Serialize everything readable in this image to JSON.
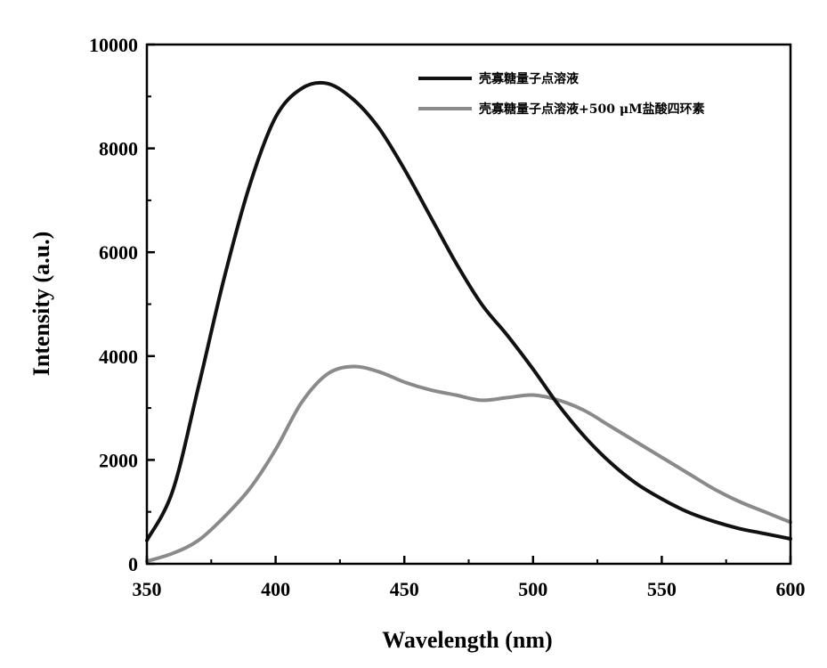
{
  "chart_data": {
    "type": "line",
    "xlabel": "Wavelength (nm)",
    "ylabel": "Intensity (a.u.)",
    "xlim": [
      350,
      600
    ],
    "ylim": [
      0,
      10000
    ],
    "xticks": [
      350,
      400,
      450,
      500,
      550,
      600
    ],
    "yticks": [
      0,
      2000,
      4000,
      6000,
      8000,
      10000
    ],
    "grid": false,
    "legend_position": "top-right",
    "series": [
      {
        "name": "壳寡糖量子点溶液",
        "color": "#111111",
        "x": [
          350,
          360,
          370,
          380,
          390,
          400,
          410,
          420,
          430,
          440,
          450,
          460,
          470,
          480,
          490,
          500,
          510,
          520,
          530,
          540,
          550,
          560,
          570,
          580,
          590,
          600
        ],
        "y": [
          450,
          1400,
          3400,
          5500,
          7300,
          8600,
          9150,
          9250,
          8950,
          8400,
          7600,
          6700,
          5800,
          5000,
          4400,
          3750,
          3050,
          2450,
          1950,
          1550,
          1250,
          1000,
          820,
          680,
          580,
          480
        ]
      },
      {
        "name": "壳寡糖量子点溶液+500 μM盐酸四环素",
        "color": "#8a8a8a",
        "x": [
          350,
          360,
          370,
          380,
          390,
          400,
          410,
          420,
          430,
          440,
          450,
          460,
          470,
          480,
          490,
          500,
          510,
          520,
          530,
          540,
          550,
          560,
          570,
          580,
          590,
          600
        ],
        "y": [
          50,
          200,
          450,
          900,
          1450,
          2200,
          3100,
          3650,
          3800,
          3700,
          3500,
          3350,
          3250,
          3150,
          3200,
          3250,
          3150,
          2950,
          2650,
          2350,
          2050,
          1750,
          1450,
          1200,
          1000,
          800
        ]
      }
    ]
  }
}
